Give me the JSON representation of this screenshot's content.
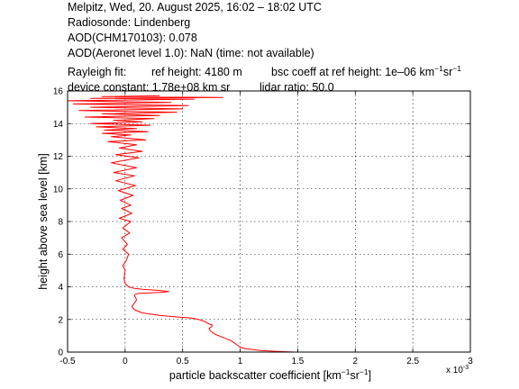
{
  "header": {
    "line1": "Melpitz, Wed, 20. August 2025, 16:02 – 18:02 UTC",
    "line2": "Radiosonde: Lindenberg",
    "line3": "AOD(CHM170103): 0.078",
    "line4": "AOD(Aeronet level 1.0): NaN   (time: not available)",
    "rayleigh_fit": "Rayleigh fit:",
    "ref_height": "ref height: 4180 m",
    "bsc_coeff_prefix": "bsc coeff at ref height: 1e–06 km",
    "device_constant": "device constant: 1.78e+08 km sr",
    "lidar_ratio": "lidar ratio: 50.0"
  },
  "chart_data": {
    "type": "line",
    "xlabel_prefix": "particle backscatter coefficient [km",
    "ylabel": "height above sea level [km]",
    "x_exponent_label": "x 10",
    "x_exponent_power": "-3",
    "xlim": [
      -0.5,
      3
    ],
    "ylim": [
      0,
      16
    ],
    "x_ticks": [
      "-0.5",
      "0",
      "0.5",
      "1",
      "1.5",
      "2",
      "2.5",
      "3"
    ],
    "y_ticks": [
      "0",
      "2",
      "4",
      "6",
      "8",
      "10",
      "12",
      "14",
      "16"
    ],
    "grid": true,
    "line_color": "#ff0000",
    "series": [
      {
        "units_note": "x in units of 1e-3 km^-1 sr^-1, y in km",
        "x": [
          1.47,
          1.3,
          1.18,
          1.05,
          1.0,
          0.96,
          0.92,
          0.85,
          0.78,
          0.74,
          0.73,
          0.75,
          0.76,
          0.72,
          0.7,
          0.68,
          0.66,
          0.64,
          0.6,
          0.55,
          0.45,
          0.3,
          0.15,
          0.08,
          0.06,
          0.08,
          0.1,
          0.09,
          0.08,
          0.09,
          0.12,
          0.2,
          0.3,
          0.38,
          0.33,
          0.25,
          0.15,
          0.08,
          0.03,
          0.0,
          -0.01,
          0.0,
          -0.02,
          0.01,
          0.03,
          -0.02,
          0.02,
          -0.03,
          0.04,
          -0.02,
          0.05,
          -0.05,
          0.06,
          -0.03,
          0.05,
          -0.04,
          0.07,
          -0.06,
          0.09,
          -0.08,
          0.08,
          -0.1,
          0.1,
          -0.12,
          0.12,
          -0.08,
          0.15,
          -0.05,
          0.1,
          -0.15,
          0.18,
          -0.12,
          0.05,
          -0.2,
          0.2,
          -0.18,
          0.1,
          -0.25,
          0.22,
          -0.3,
          0.15,
          -0.1,
          0.25,
          -0.35,
          0.3,
          -0.2,
          0.45,
          -0.4,
          0.5,
          -0.3,
          0.55,
          -0.45,
          0.4,
          -0.5,
          0.6,
          -0.3,
          0.85,
          -0.2,
          0.3
        ],
        "y": [
          0.0,
          0.05,
          0.1,
          0.2,
          0.3,
          0.5,
          0.7,
          0.9,
          1.1,
          1.3,
          1.45,
          1.55,
          1.65,
          1.75,
          1.85,
          1.9,
          1.95,
          2.0,
          2.05,
          2.1,
          2.15,
          2.25,
          2.4,
          2.6,
          2.8,
          3.0,
          3.2,
          3.35,
          3.45,
          3.55,
          3.6,
          3.62,
          3.65,
          3.7,
          3.75,
          3.8,
          3.85,
          3.9,
          4.0,
          4.2,
          4.5,
          5.0,
          5.3,
          5.6,
          6.0,
          6.3,
          6.6,
          7.0,
          7.3,
          7.6,
          8.0,
          8.2,
          8.5,
          8.8,
          9.0,
          9.3,
          9.6,
          9.9,
          10.2,
          10.5,
          10.8,
          11.0,
          11.3,
          11.6,
          11.9,
          12.1,
          12.3,
          12.5,
          12.7,
          12.9,
          13.0,
          13.2,
          13.3,
          13.4,
          13.5,
          13.6,
          13.7,
          13.8,
          13.9,
          14.0,
          14.1,
          14.2,
          14.3,
          14.4,
          14.5,
          14.6,
          14.7,
          14.8,
          14.9,
          15.0,
          15.1,
          15.2,
          15.3,
          15.4,
          15.5,
          15.55,
          15.6,
          15.65,
          15.7
        ]
      }
    ]
  }
}
